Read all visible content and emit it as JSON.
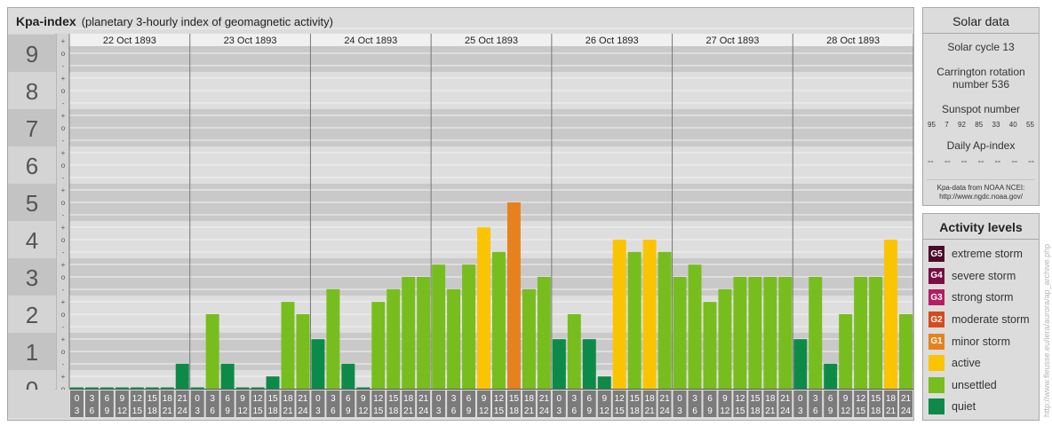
{
  "title": {
    "main": "Kpa-index",
    "sub": "(planetary 3-hourly index of geomagnetic activity)"
  },
  "solar_panel": {
    "title": "Solar data",
    "cycle": "Solar cycle 13",
    "carrington": "Carrington rotation number 536",
    "sunspot_label": "Sunspot number",
    "sunspot_values": [
      "95",
      "7",
      "92",
      "85",
      "33",
      "40",
      "55"
    ],
    "ap_label": "Daily Ap-index",
    "ap_values": [
      "--",
      "--",
      "--",
      "--",
      "--",
      "--",
      "--"
    ],
    "source_line1": "Kpa-data from NOAA NCEI:",
    "source_line2": "http://www.ngdc.noaa.gov/"
  },
  "activity_panel": {
    "title": "Activity levels",
    "levels": [
      {
        "code": "G5",
        "label": "extreme storm",
        "color": "#4d0a2b"
      },
      {
        "code": "G4",
        "label": "severe storm",
        "color": "#7a0e45"
      },
      {
        "code": "G3",
        "label": "strong storm",
        "color": "#b51e62"
      },
      {
        "code": "G2",
        "label": "moderate storm",
        "color": "#d64a1c"
      },
      {
        "code": "G1",
        "label": "minor storm",
        "color": "#e6821e"
      },
      {
        "code": "",
        "label": "active",
        "color": "#fbc400"
      },
      {
        "code": "",
        "label": "unsettled",
        "color": "#78bd1e"
      },
      {
        "code": "",
        "label": "quiet",
        "color": "#0e8a48"
      }
    ]
  },
  "watermark": "http://www.fleusse.eu/iera/aurora/ap_archive.php",
  "chart_data": {
    "type": "bar",
    "title": "Kpa-index",
    "days": [
      "22 Oct 1893",
      "23 Oct 1893",
      "24 Oct 1893",
      "25 Oct 1893",
      "26 Oct 1893",
      "27 Oct 1893",
      "28 Oct 1893"
    ],
    "interval_top": [
      "0",
      "3",
      "6",
      "9",
      "12",
      "15",
      "18",
      "21"
    ],
    "interval_bottom": [
      "3",
      "6",
      "9",
      "12",
      "15",
      "18",
      "21",
      "24"
    ],
    "y_major_ticks": [
      "0",
      "1",
      "2",
      "3",
      "4",
      "5",
      "6",
      "7",
      "8",
      "9"
    ],
    "y_minor_ticks": [
      "o",
      "+",
      "-"
    ],
    "ylim": [
      0,
      9.67
    ],
    "values": [
      [
        0.0,
        0.0,
        0.0,
        0.0,
        0.0,
        0.0,
        0.0,
        0.67
      ],
      [
        0.0,
        2.0,
        0.67,
        0.0,
        0.0,
        0.33,
        2.33,
        2.0
      ],
      [
        1.33,
        2.67,
        0.67,
        0.0,
        2.33,
        2.67,
        3.0,
        3.0
      ],
      [
        3.33,
        2.67,
        3.33,
        4.33,
        3.67,
        5.0,
        2.67,
        3.0
      ],
      [
        1.33,
        2.0,
        1.33,
        0.33,
        4.0,
        3.67,
        4.0,
        3.67
      ],
      [
        3.0,
        3.33,
        2.33,
        2.67,
        3.0,
        3.0,
        3.0,
        3.0
      ],
      [
        1.33,
        3.0,
        0.67,
        2.0,
        3.0,
        3.0,
        4.0,
        2.0
      ]
    ],
    "colors": {
      "quiet": "#0e8a48",
      "unsettled": "#78bd1e",
      "active": "#fbc400",
      "G1": "#e6821e",
      "G2": "#d64a1c"
    },
    "grid": true
  }
}
